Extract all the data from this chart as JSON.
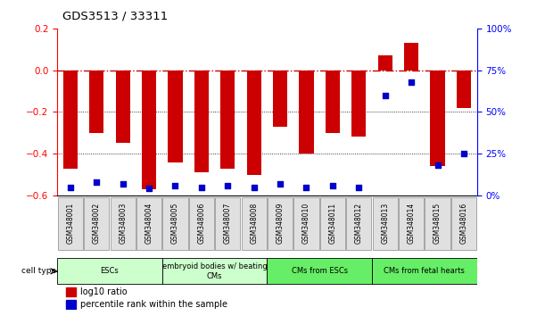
{
  "title": "GDS3513 / 33311",
  "samples": [
    "GSM348001",
    "GSM348002",
    "GSM348003",
    "GSM348004",
    "GSM348005",
    "GSM348006",
    "GSM348007",
    "GSM348008",
    "GSM348009",
    "GSM348010",
    "GSM348011",
    "GSM348012",
    "GSM348013",
    "GSM348014",
    "GSM348015",
    "GSM348016"
  ],
  "log10_ratio": [
    -0.47,
    -0.3,
    -0.35,
    -0.57,
    -0.44,
    -0.49,
    -0.47,
    -0.5,
    -0.27,
    -0.4,
    -0.3,
    -0.32,
    0.07,
    0.13,
    -0.46,
    -0.18
  ],
  "percentile_rank": [
    5,
    8,
    7,
    4,
    6,
    5,
    6,
    5,
    7,
    5,
    6,
    5,
    60,
    68,
    18,
    25
  ],
  "cell_type_groups": [
    {
      "label": "ESCs",
      "start": 0,
      "end": 3,
      "color": "#ccffcc"
    },
    {
      "label": "embryoid bodies w/ beating\nCMs",
      "start": 4,
      "end": 7,
      "color": "#ccffcc"
    },
    {
      "label": "CMs from ESCs",
      "start": 8,
      "end": 11,
      "color": "#66ee66"
    },
    {
      "label": "CMs from fetal hearts",
      "start": 12,
      "end": 15,
      "color": "#66ee66"
    }
  ],
  "ylim_left": [
    -0.6,
    0.2
  ],
  "ylim_right": [
    0,
    100
  ],
  "yticks_left": [
    -0.6,
    -0.4,
    -0.2,
    0.0,
    0.2
  ],
  "yticks_right": [
    0,
    25,
    50,
    75,
    100
  ],
  "bar_color": "#cc0000",
  "dot_color": "#0000cc",
  "grid_lines": [
    -0.2,
    -0.4
  ],
  "background_color": "#ffffff"
}
